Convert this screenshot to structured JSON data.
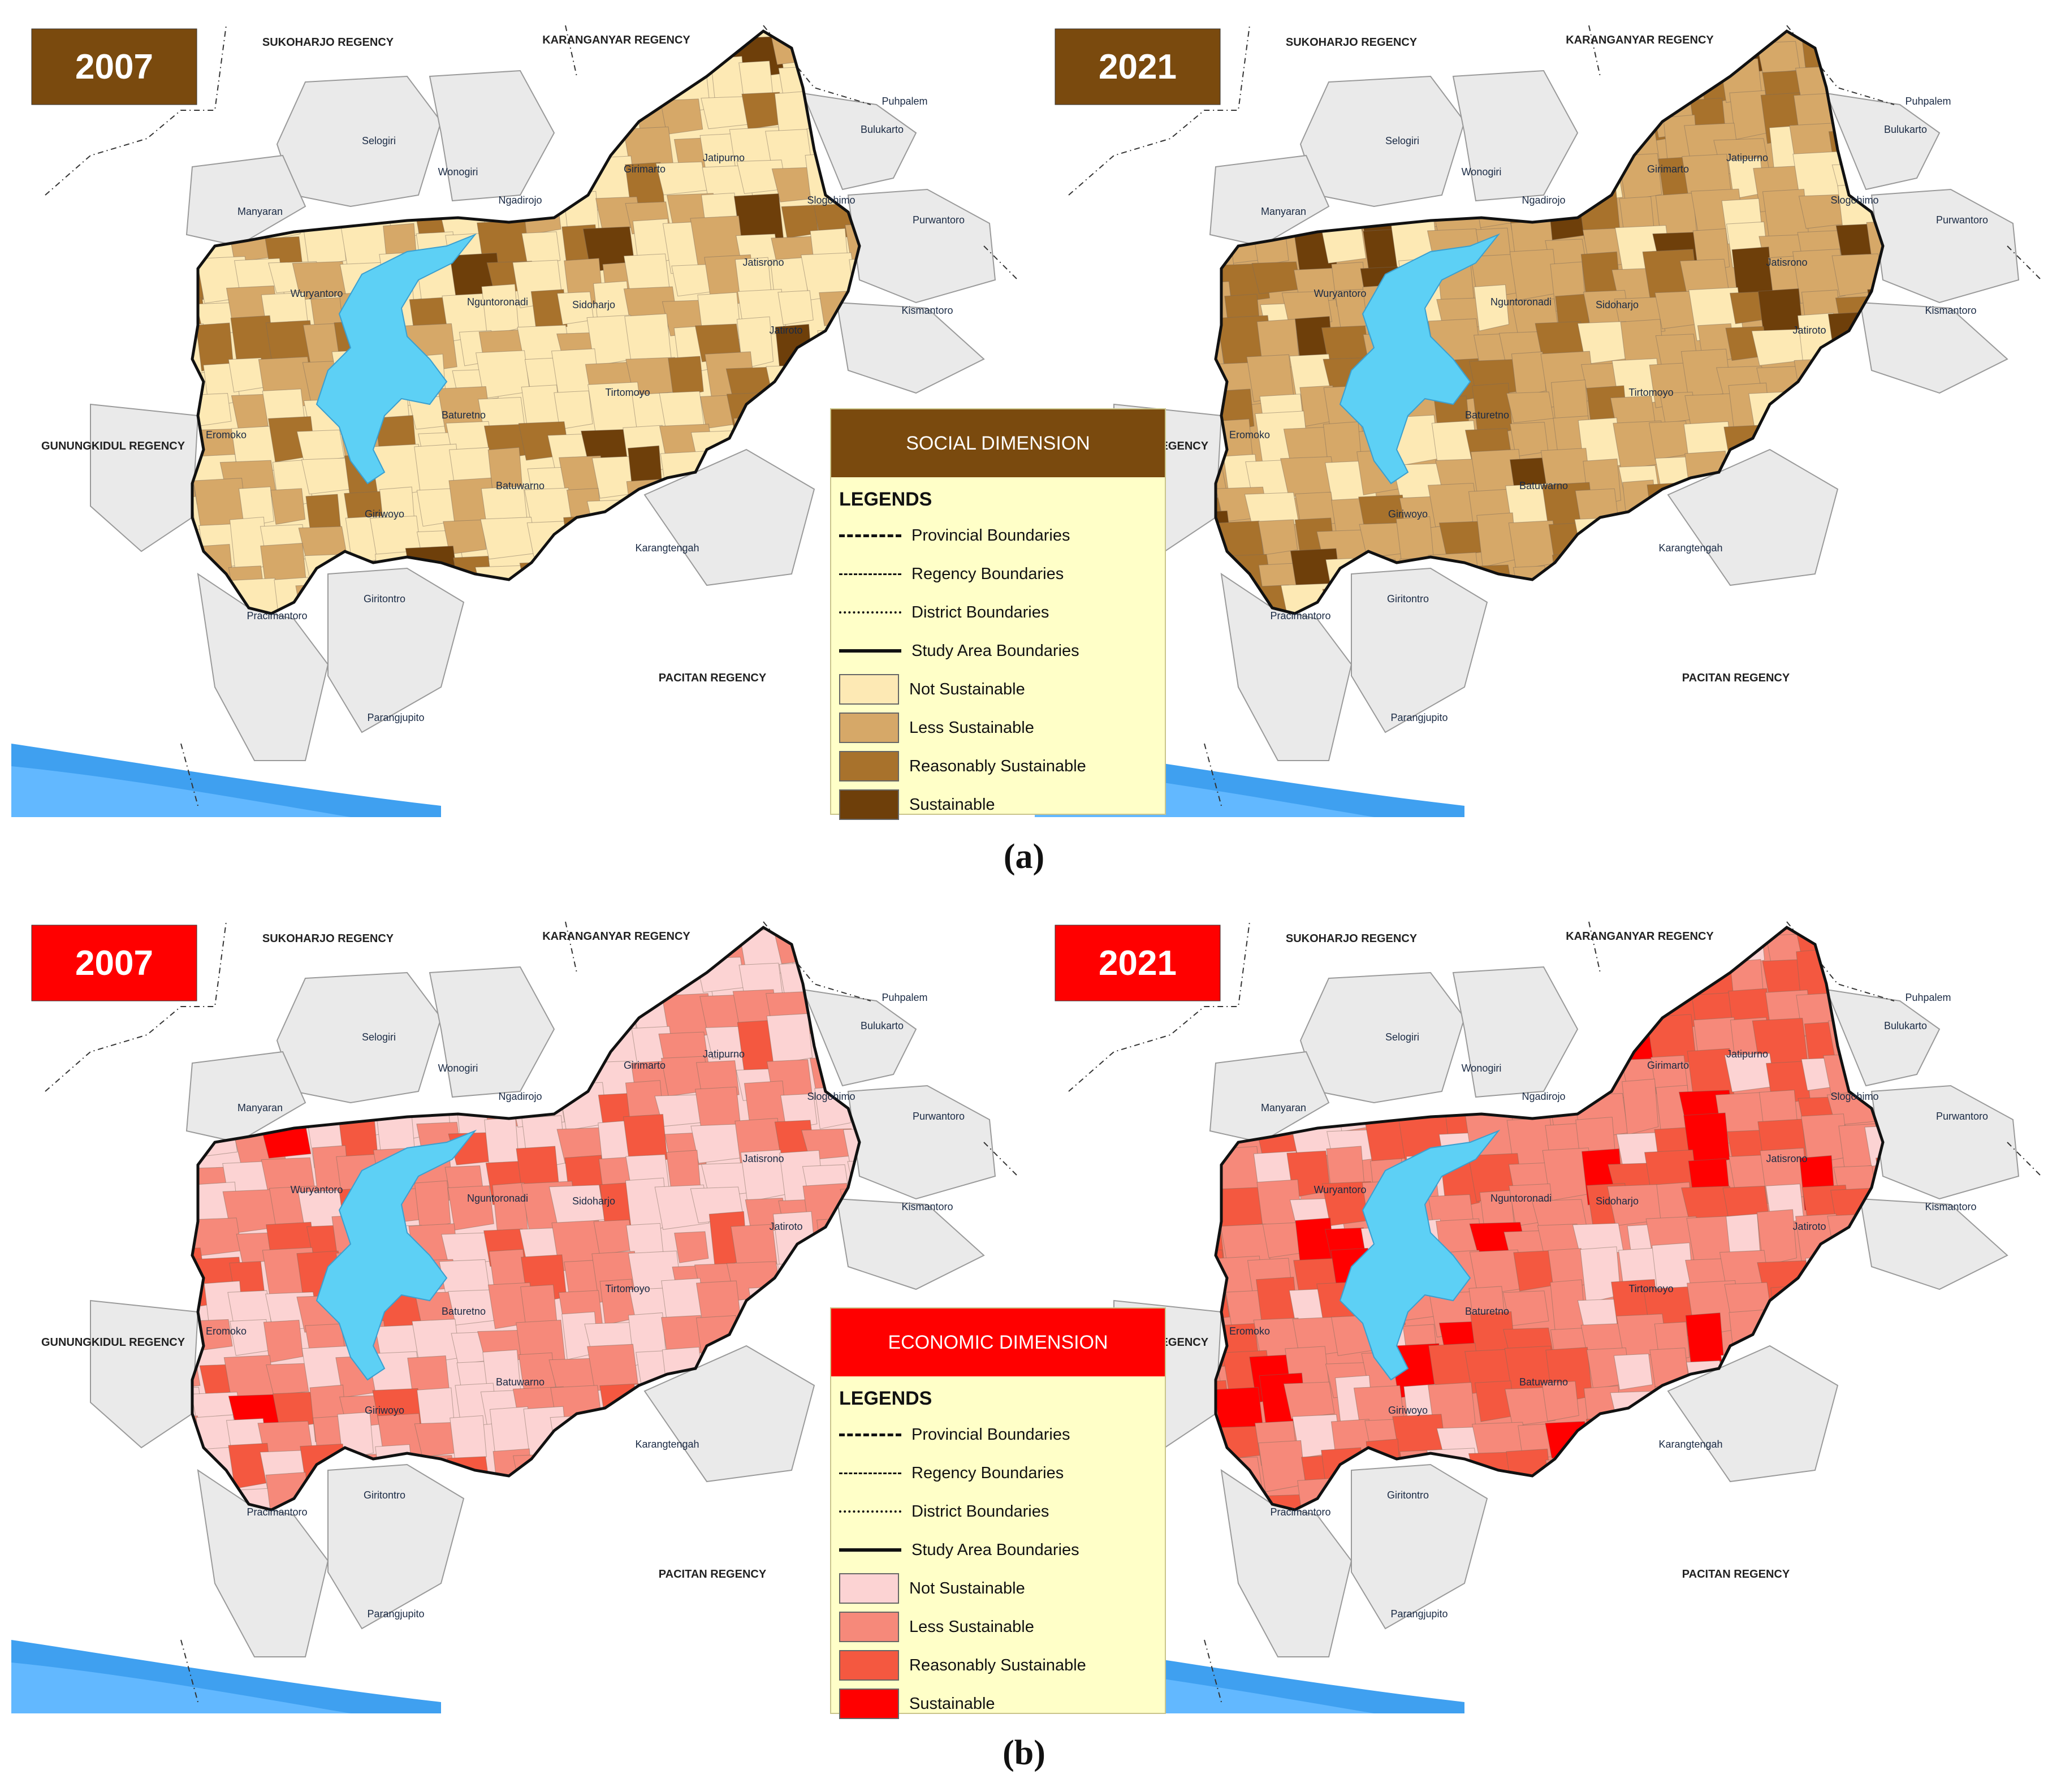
{
  "panels": [
    {
      "year": "2007",
      "color": "#7a4a0e",
      "scheme": "social"
    },
    {
      "year": "2021",
      "color": "#7a4a0e",
      "scheme": "social"
    },
    {
      "year": "2007",
      "color": "#ff0000",
      "scheme": "economic"
    },
    {
      "year": "2021",
      "color": "#ff0000",
      "scheme": "economic"
    }
  ],
  "captions": {
    "a": "(a)",
    "b": "(b)"
  },
  "regions": {
    "sukoharjo": "SUKOHARJO REGENCY",
    "karanganyar": "KARANGANYAR REGENCY",
    "gunungkidul": "GUNUNGKIDUL REGENCY",
    "pacitan": "PACITAN REGENCY"
  },
  "districts": [
    "Selogiri",
    "Wonogiri",
    "Manyaran",
    "Wuryantoro",
    "Ngadirojo",
    "Girimarto",
    "Jatipurno",
    "Slogohimo",
    "Puhpalem",
    "Bulukarto",
    "Purwantoro",
    "Kismantoro",
    "Jatisrono",
    "Sidoharjo",
    "Nguntoronadi",
    "Jatiroto",
    "Tirtomoyo",
    "Baturetno",
    "Eromoko",
    "Batuwarno",
    "Giriwoyo",
    "Karangtengah",
    "Giritontro",
    "Pracimantoro",
    "Parangjupito"
  ],
  "legend_social": {
    "header": "SOCIAL DIMENSION",
    "header_color": "#7a4a0e",
    "title": "LEGENDS",
    "lines": [
      "Provincial Boundaries",
      "Regency Boundaries",
      "District Boundaries",
      "Study Area Boundaries"
    ],
    "classes": [
      {
        "label": "Not Sustainable",
        "color": "#fde9b4"
      },
      {
        "label": "Less Sustainable",
        "color": "#d6a868"
      },
      {
        "label": "Reasonably Sustainable",
        "color": "#a8722c"
      },
      {
        "label": "Sustainable",
        "color": "#6e3f0a"
      }
    ]
  },
  "legend_economic": {
    "header": "ECONOMIC DIMENSION",
    "header_color": "#ff0000",
    "title": "LEGENDS",
    "lines": [
      "Provincial Boundaries",
      "Regency Boundaries",
      "District Boundaries",
      "Study Area Boundaries"
    ],
    "classes": [
      {
        "label": "Not Sustainable",
        "color": "#fcd3d3"
      },
      {
        "label": "Less Sustainable",
        "color": "#f6897a"
      },
      {
        "label": "Reasonably Sustainable",
        "color": "#f45840"
      },
      {
        "label": "Sustainable",
        "color": "#ff0000"
      }
    ]
  }
}
